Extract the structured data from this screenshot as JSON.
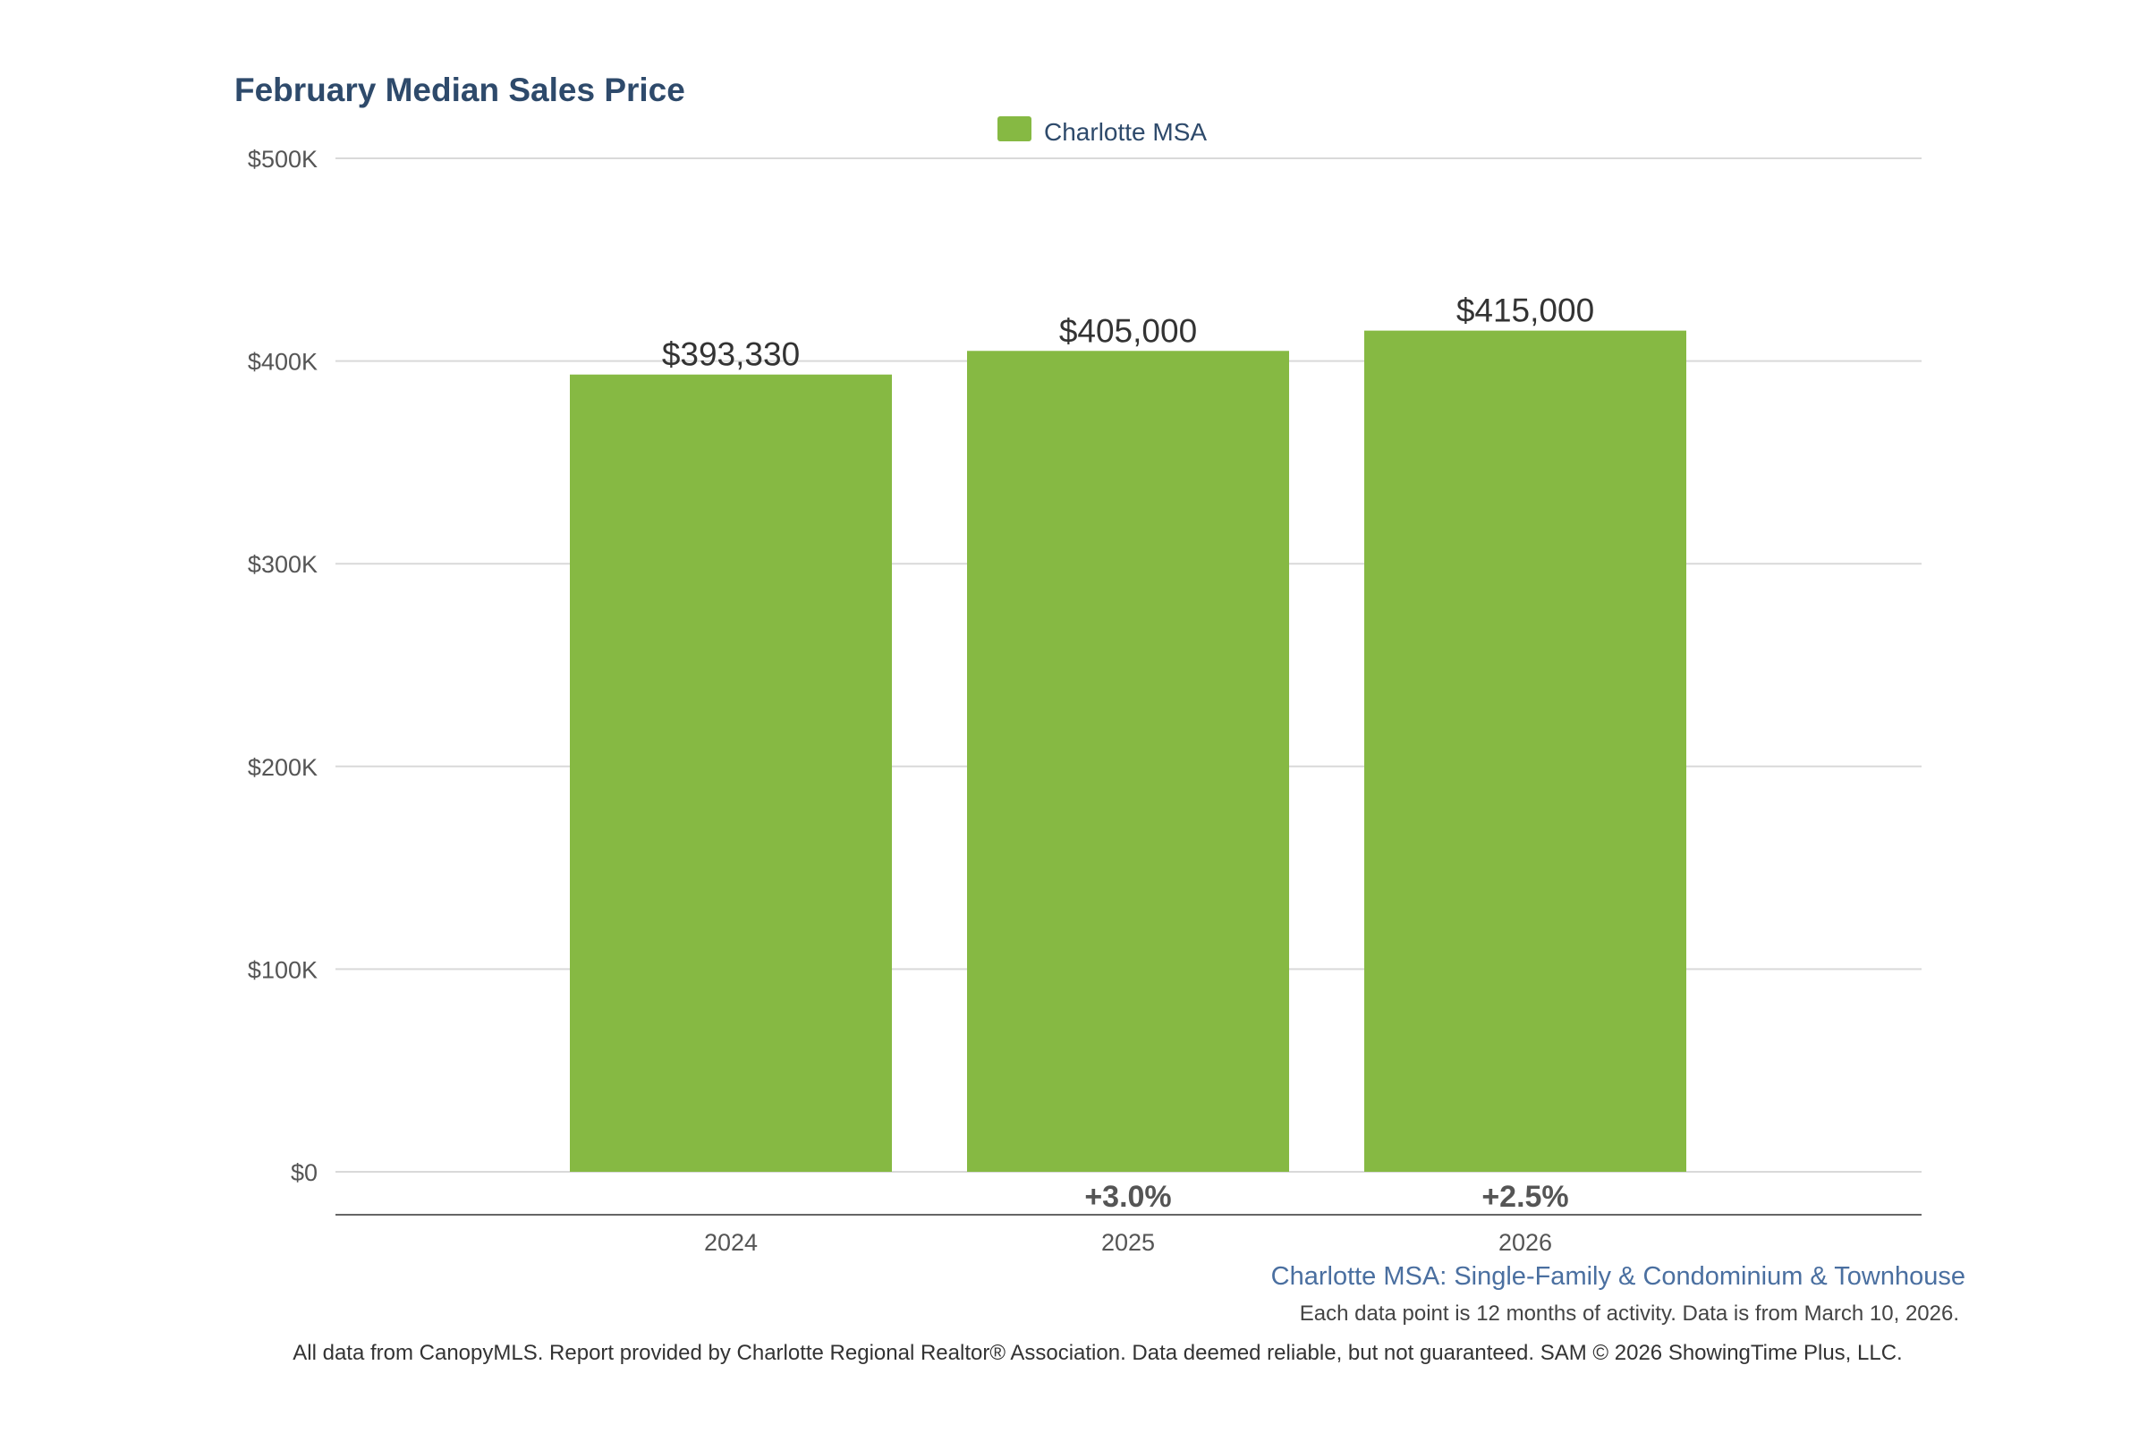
{
  "chart_data": {
    "type": "bar",
    "title": "February Median Sales Price",
    "categories": [
      "2024",
      "2025",
      "2026"
    ],
    "series": [
      {
        "name": "Charlotte MSA",
        "values": [
          393330,
          405000,
          415000
        ]
      }
    ],
    "value_labels": [
      "$393,330",
      "$405,000",
      "$415,000"
    ],
    "change_labels": [
      "",
      "+3.0%",
      "+2.5%"
    ],
    "ylim": [
      0,
      500000
    ],
    "yticks": [
      0,
      100000,
      200000,
      300000,
      400000,
      500000
    ],
    "ytick_labels": [
      "$0",
      "$100K",
      "$200K",
      "$300K",
      "$400K",
      "$500K"
    ],
    "xlabel": "",
    "ylabel": "",
    "grid": true,
    "legend_position": "top-center",
    "colors": {
      "bar": "#86b943",
      "grid": "#d9d9d9",
      "axis": "#666666",
      "title": "#2e4a6b"
    }
  },
  "subtitle": "Charlotte MSA: Single-Family & Condominium & Townhouse",
  "note": "Each data point is 12 months of activity. Data is from March 10, 2026.",
  "footer": "All data from CanopyMLS. Report provided by Charlotte Regional Realtor® Association. Data deemed reliable, but not guaranteed. SAM © 2026 ShowingTime Plus, LLC."
}
